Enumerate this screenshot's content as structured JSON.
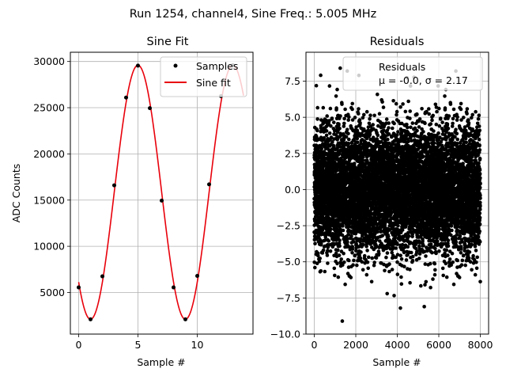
{
  "figure": {
    "suptitle": "Run 1254, channel4, Sine Freq.: 5.005 MHz"
  },
  "chart_data": [
    {
      "type": "line",
      "title": "Sine Fit",
      "xlabel": "Sample #",
      "ylabel": "ADC Counts",
      "xlim": [
        -0.7,
        14.7
      ],
      "ylim": [
        500,
        31000
      ],
      "xticks": [
        0,
        5,
        10
      ],
      "yticks": [
        5000,
        10000,
        15000,
        20000,
        25000,
        30000
      ],
      "grid": true,
      "legend": {
        "location": "upper right",
        "entries": [
          "Samples",
          "Sine fit"
        ]
      },
      "fit": {
        "amplitude": 13750,
        "offset": 15850,
        "period": 8.0,
        "phase_sample": 5.0,
        "x_range": [
          0,
          13.9
        ]
      },
      "series": [
        {
          "name": "Samples",
          "style": "markers",
          "color": "#000000",
          "x": [
            0,
            1,
            2,
            3,
            4,
            5,
            6,
            7,
            8,
            9,
            10,
            11,
            12,
            13
          ],
          "y": [
            5550,
            2100,
            6750,
            16600,
            26100,
            29550,
            24950,
            14950,
            5550,
            2100,
            6800,
            16700,
            26250,
            29600
          ]
        },
        {
          "name": "Sine fit",
          "style": "line",
          "color": "#e8000b"
        }
      ]
    },
    {
      "type": "scatter",
      "title": "Residuals",
      "xlabel": "Sample #",
      "ylabel": "",
      "xlim": [
        -400,
        8400
      ],
      "ylim": [
        -10.0,
        9.5
      ],
      "xticks": [
        0,
        2000,
        4000,
        6000,
        8000
      ],
      "yticks": [
        -10.0,
        -7.5,
        -5.0,
        -2.5,
        0.0,
        2.5,
        5.0,
        7.5
      ],
      "ytick_labels": [
        "−10.0",
        "−7.5",
        "−5.0",
        "−2.5",
        "0.0",
        "2.5",
        "5.0",
        "7.5"
      ],
      "grid": true,
      "legend": {
        "location": "upper right",
        "entries": [
          "Residuals",
          "μ = -0.0, σ = 2.17"
        ]
      },
      "series": [
        {
          "name": "Residuals",
          "color": "#000000",
          "n_points": 8000,
          "mean": -0.0,
          "sigma": 2.17,
          "x_range": [
            0,
            8000
          ],
          "notable_points": [
            {
              "x": 1350,
              "y": -9.1
            },
            {
              "x": 4150,
              "y": -8.2
            },
            {
              "x": 5300,
              "y": -8.1
            },
            {
              "x": 2150,
              "y": 7.9
            },
            {
              "x": 1250,
              "y": 8.4
            }
          ]
        }
      ]
    }
  ]
}
